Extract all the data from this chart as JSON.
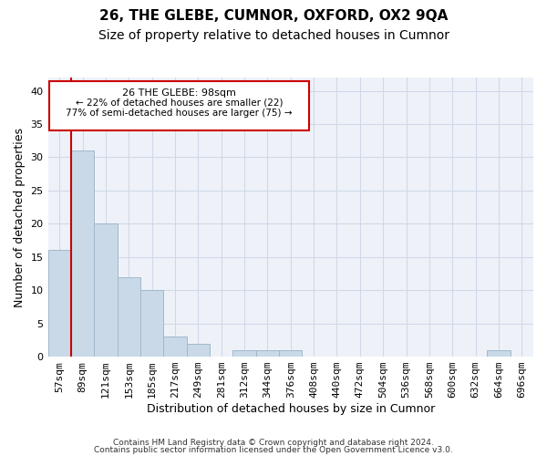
{
  "title1": "26, THE GLEBE, CUMNOR, OXFORD, OX2 9QA",
  "title2": "Size of property relative to detached houses in Cumnor",
  "xlabel": "Distribution of detached houses by size in Cumnor",
  "ylabel": "Number of detached properties",
  "categories": [
    "57sqm",
    "89sqm",
    "121sqm",
    "153sqm",
    "185sqm",
    "217sqm",
    "249sqm",
    "281sqm",
    "312sqm",
    "344sqm",
    "376sqm",
    "408sqm",
    "440sqm",
    "472sqm",
    "504sqm",
    "536sqm",
    "568sqm",
    "600sqm",
    "632sqm",
    "664sqm",
    "696sqm"
  ],
  "values": [
    16,
    31,
    20,
    12,
    10,
    3,
    2,
    0,
    1,
    1,
    1,
    0,
    0,
    0,
    0,
    0,
    0,
    0,
    0,
    1,
    0
  ],
  "bar_color": "#c9d9e8",
  "bar_edge_color": "#a0b8cc",
  "vline_x": 1,
  "vline_color": "#cc0000",
  "annotation_box_color": "#cc0000",
  "annotation_text1": "26 THE GLEBE: 98sqm",
  "annotation_text2": "← 22% of detached houses are smaller (22)",
  "annotation_text3": "77% of semi-detached houses are larger (75) →",
  "ylim": [
    0,
    42
  ],
  "yticks": [
    0,
    5,
    10,
    15,
    20,
    25,
    30,
    35,
    40
  ],
  "grid_color": "#d0d8e8",
  "bg_color": "#eef2f8",
  "footer1": "Contains HM Land Registry data © Crown copyright and database right 2024.",
  "footer2": "Contains public sector information licensed under the Open Government Licence v3.0.",
  "title1_fontsize": 11,
  "title2_fontsize": 10,
  "axis_fontsize": 8,
  "ylabel_fontsize": 9
}
